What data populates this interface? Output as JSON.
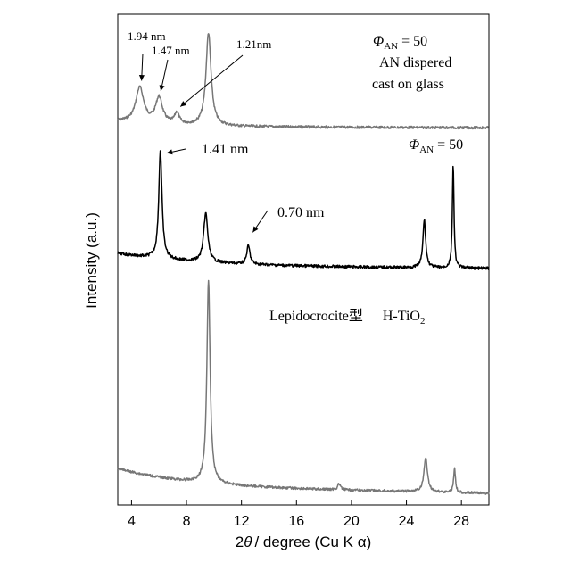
{
  "chart_data": {
    "type": "line",
    "xlabel_prefix": "2",
    "xlabel_theta": "θ",
    "xlabel_suffix": "/ degree (Cu K α)",
    "ylabel": "Intensity (a.u.)",
    "xlim": [
      3,
      30
    ],
    "xticks": [
      4,
      8,
      12,
      16,
      20,
      24,
      28
    ],
    "series": [
      {
        "color": "#777777",
        "label_lines": [
          {
            "phi": "Φ",
            "sub": "AN",
            "rest": " = 50"
          },
          {
            "text": "AN dispered"
          },
          {
            "text": "cast on glass"
          }
        ],
        "peaks": [
          {
            "x": 4.6,
            "y": 0.38,
            "w": 0.35
          },
          {
            "x": 6.0,
            "y": 0.28,
            "w": 0.3
          },
          {
            "x": 7.3,
            "y": 0.12,
            "w": 0.2
          },
          {
            "x": 9.6,
            "y": 1.0,
            "w": 0.22
          }
        ],
        "annotations": [
          {
            "text": "1.94 nm",
            "peak_x": 4.6
          },
          {
            "text": "1.47 nm",
            "peak_x": 6.0
          },
          {
            "text": "1.21nm",
            "peak_x": 7.3
          }
        ]
      },
      {
        "color": "#000000",
        "label_lines": [
          {
            "phi": "Φ",
            "sub": "AN",
            "rest": " = 50"
          }
        ],
        "peaks": [
          {
            "x": 6.1,
            "y": 1.0,
            "w": 0.14
          },
          {
            "x": 9.4,
            "y": 0.45,
            "w": 0.18
          },
          {
            "x": 12.5,
            "y": 0.17,
            "w": 0.14
          },
          {
            "x": 25.3,
            "y": 0.44,
            "w": 0.12
          },
          {
            "x": 27.4,
            "y": 0.95,
            "w": 0.07
          }
        ],
        "annotations": [
          {
            "text": "1.41 nm",
            "peak_x": 6.1
          },
          {
            "text": "0.70 nm",
            "peak_x": 12.5
          }
        ]
      },
      {
        "color": "#777777",
        "label_text": "Lepidocrocite型",
        "label_formula_main": "H-TiO",
        "label_formula_sub": "2",
        "peaks": [
          {
            "x": 9.6,
            "y": 1.0,
            "w": 0.14
          },
          {
            "x": 19.1,
            "y": 0.03,
            "w": 0.12
          },
          {
            "x": 25.4,
            "y": 0.17,
            "w": 0.15
          },
          {
            "x": 27.5,
            "y": 0.12,
            "w": 0.08
          }
        ]
      }
    ]
  }
}
